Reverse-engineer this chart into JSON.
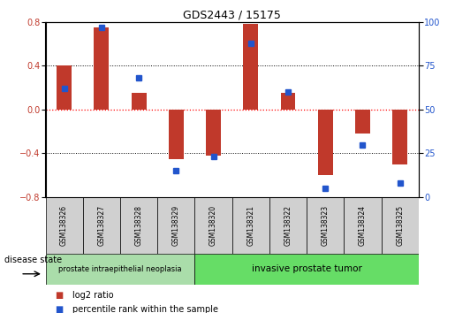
{
  "title": "GDS2443 / 15175",
  "samples": [
    "GSM138326",
    "GSM138327",
    "GSM138328",
    "GSM138329",
    "GSM138320",
    "GSM138321",
    "GSM138322",
    "GSM138323",
    "GSM138324",
    "GSM138325"
  ],
  "log2_ratio": [
    0.4,
    0.75,
    0.15,
    -0.45,
    -0.42,
    0.78,
    0.15,
    -0.6,
    -0.22,
    -0.5
  ],
  "percentile": [
    62,
    97,
    68,
    15,
    23,
    88,
    60,
    5,
    30,
    8
  ],
  "ylim": [
    -0.8,
    0.8
  ],
  "yticks_left": [
    -0.8,
    -0.4,
    0.0,
    0.4,
    0.8
  ],
  "yticks_right": [
    0,
    25,
    50,
    75,
    100
  ],
  "bar_color": "#c0392b",
  "dot_color": "#2255cc",
  "background_color": "#ffffff",
  "sample_box_color": "#d0d0d0",
  "disease_groups": [
    {
      "label": "prostate intraepithelial neoplasia",
      "start": 0,
      "end": 4,
      "color": "#aaddaa"
    },
    {
      "label": "invasive prostate tumor",
      "start": 4,
      "end": 10,
      "color": "#66dd66"
    }
  ],
  "legend_red": "log2 ratio",
  "legend_blue": "percentile rank within the sample",
  "xlabel_disease": "disease state"
}
